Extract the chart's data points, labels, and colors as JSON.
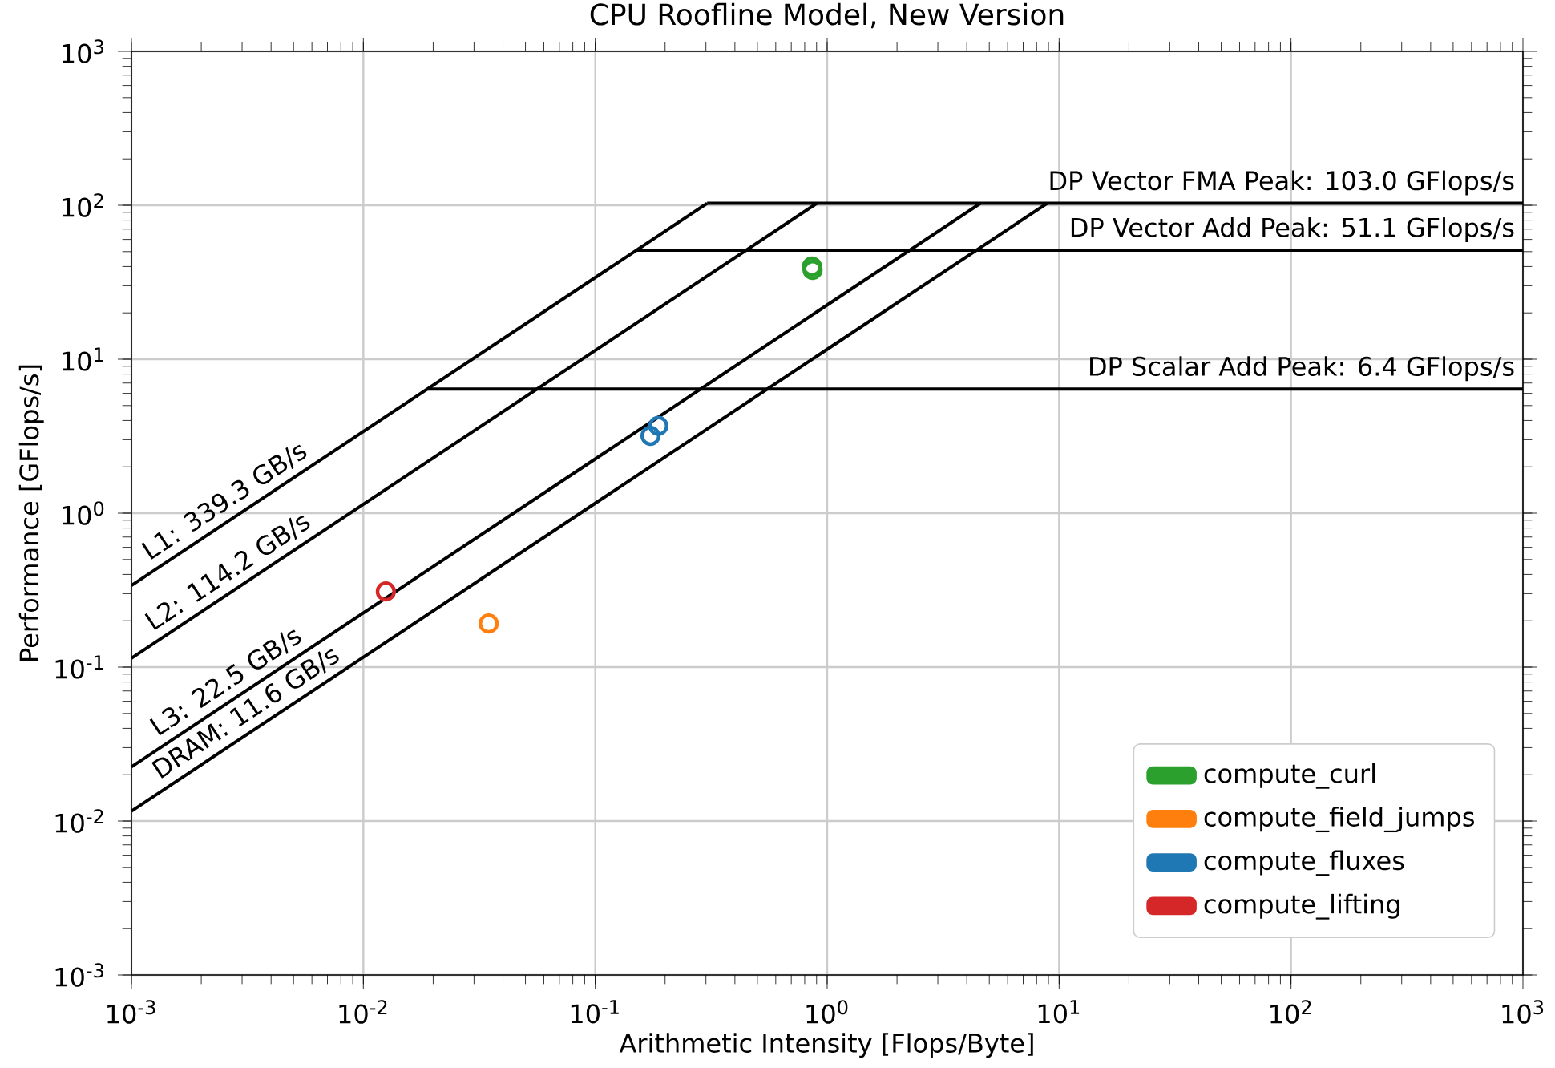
{
  "chart_data": {
    "type": "scatter",
    "title": "CPU Roofline Model, New Version",
    "xlabel": "Arithmetic Intensity [Flops/Byte]",
    "ylabel": "Performance [GFlops/s]",
    "log": "xy",
    "grid": true,
    "legend": "bottom right",
    "marker": "circle",
    "xlim": [
      0.001,
      1000
    ],
    "ylim": [
      0.001,
      1000
    ],
    "xticks": [
      {
        "value": 0.001,
        "label": "10$^{-3}$"
      },
      {
        "value": 0.01,
        "label": "10$^{-2}$"
      },
      {
        "value": 0.1,
        "label": "10$^{-1}$"
      },
      {
        "value": 1,
        "label": "10$^{0}$"
      },
      {
        "value": 10,
        "label": "10$^{1}$"
      },
      {
        "value": 100,
        "label": "10$^{2}$"
      },
      {
        "value": 1000,
        "label": "10$^{3}$"
      }
    ],
    "yticks": [
      {
        "value": 0.001,
        "label": "10$^{-3}$"
      },
      {
        "value": 0.01,
        "label": "10$^{-2}$"
      },
      {
        "value": 0.1,
        "label": "10$^{-1}$"
      },
      {
        "value": 1,
        "label": "10$^{0}$"
      },
      {
        "value": 10,
        "label": "10$^{1}$"
      },
      {
        "value": 100,
        "label": "10$^{2}$"
      },
      {
        "value": 1000,
        "label": "10$^{3}$"
      }
    ],
    "series": [
      {
        "type": "line",
        "name": "L1: 339.3 GB/s",
        "color": "#000000",
        "marker": "none",
        "x": [
          0.001,
          0.3036
        ],
        "values": [
          0.3393,
          103.0
        ]
      },
      {
        "type": "line",
        "name": "L2: 114.2 GB/s",
        "color": "#000000",
        "marker": "none",
        "x": [
          0.001,
          0.902
        ],
        "values": [
          0.1142,
          103.0
        ]
      },
      {
        "type": "line",
        "name": "L3: 22.5 GB/s",
        "color": "#000000",
        "marker": "none",
        "x": [
          0.001,
          4.578
        ],
        "values": [
          0.0225,
          103.0
        ]
      },
      {
        "type": "line",
        "name": "DRAM: 11.6 GB/s",
        "color": "#000000",
        "marker": "none",
        "x": [
          0.001,
          8.88
        ],
        "values": [
          0.0116,
          103.0
        ]
      },
      {
        "type": "line",
        "name": "DP Vector FMA Peak: 103.0 GFlops/s",
        "color": "#000000",
        "marker": "none",
        "x": [
          0.3036,
          1000
        ],
        "values": [
          103.0,
          103.0
        ]
      },
      {
        "type": "line",
        "name": "DP Vector Add Peak: 51.1 GFlops/s",
        "color": "#000000",
        "marker": "none",
        "x": [
          0.1506,
          1000
        ],
        "values": [
          51.1,
          51.1
        ]
      },
      {
        "type": "line",
        "name": "DP Scalar Add Peak: 6.4 GFlops/s",
        "color": "#000000",
        "marker": "none",
        "x": [
          0.01886,
          1000
        ],
        "values": [
          6.4,
          6.4
        ]
      },
      {
        "name": "compute_curl",
        "color": "#2ca02c",
        "x": [
          0.86,
          0.865
        ],
        "values": [
          40,
          38
        ]
      },
      {
        "name": "compute_field_jumps",
        "color": "#ff7f0e",
        "x": [
          0.0347
        ],
        "values": [
          0.192
        ]
      },
      {
        "name": "compute_fluxes",
        "color": "#1f77b4",
        "x": [
          0.173,
          0.187
        ],
        "values": [
          3.18,
          3.69
        ]
      },
      {
        "name": "compute_lifting",
        "color": "#d62728",
        "x": [
          0.0125
        ],
        "values": [
          0.31
        ]
      }
    ]
  }
}
